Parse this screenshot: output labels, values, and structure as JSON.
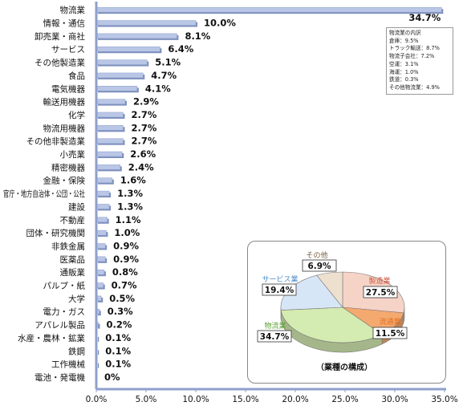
{
  "chart_data": {
    "type": "bar",
    "orientation": "horizontal",
    "categories": [
      "物流業",
      "情報・通信",
      "卸売業・商社",
      "サービス",
      "その他製造業",
      "食品",
      "電気機器",
      "輸送用機器",
      "化学",
      "物流用機器",
      "その他非製造業",
      "小売業",
      "精密機器",
      "金融・保険",
      "官庁・地方自治体・公団・公社",
      "建設",
      "不動産",
      "団体・研究機関",
      "非鉄金属",
      "医薬品",
      "通販業",
      "パルプ・紙",
      "大学",
      "電力・ガス",
      "アパレル製品",
      "水産・農林・鉱業",
      "鉄鋼",
      "工作機械",
      "電池・発電機"
    ],
    "values": [
      34.7,
      10.0,
      8.1,
      6.4,
      5.1,
      4.7,
      4.1,
      2.9,
      2.7,
      2.7,
      2.7,
      2.6,
      2.4,
      1.6,
      1.3,
      1.3,
      1.1,
      1.0,
      0.9,
      0.9,
      0.8,
      0.7,
      0.5,
      0.3,
      0.2,
      0.1,
      0.1,
      0.1,
      0
    ],
    "value_labels": [
      "34.7%",
      "10.0%",
      "8.1%",
      "6.4%",
      "5.1%",
      "4.7%",
      "4.1%",
      "2.9%",
      "2.7%",
      "2.7%",
      "2.7%",
      "2.6%",
      "2.4%",
      "1.6%",
      "1.3%",
      "1.3%",
      "1.1%",
      "1.0%",
      "0.9%",
      "0.9%",
      "0.8%",
      "0.7%",
      "0.5%",
      "0.3%",
      "0.2%",
      "0.1%",
      "0.1%",
      "0.1%",
      "0%"
    ],
    "xlim": [
      0,
      35
    ],
    "x_ticks": [
      "0.0%",
      "5.0%",
      "10.0%",
      "15.0%",
      "20.0%",
      "25.0%",
      "30.0%",
      "35.0%"
    ],
    "grid": false,
    "bar_color": "#b9c6e6",
    "breakdown_note": {
      "title": "物流業の内訳",
      "lines": [
        "倉庫：9.5%",
        "トラック輸送：8.7%",
        "物流子会社：7.2%",
        "空運：3.1%",
        "海運：1.0%",
        "鉄道：0.3%",
        "その他物流業：4.9%"
      ]
    },
    "inset_pie": {
      "type": "pie",
      "title": "（業種の構成）",
      "slices": [
        {
          "label": "製造業",
          "value": 27.5,
          "value_label": "27.5%",
          "color": "#f6d3c7",
          "label_color": "#d0553a"
        },
        {
          "label": "流通業",
          "value": 11.5,
          "value_label": "11.5%",
          "color": "#f4a96f",
          "label_color": "#e07020"
        },
        {
          "label": "物流業",
          "value": 34.7,
          "value_label": "34.7%",
          "color": "#d4ebb1",
          "label_color": "#5aa032"
        },
        {
          "label": "サービス業",
          "value": 19.4,
          "value_label": "19.4%",
          "color": "#d6e6f6",
          "label_color": "#4a8ac8"
        },
        {
          "label": "その他",
          "value": 6.9,
          "value_label": "6.9%",
          "color": "#eee0cf",
          "label_color": "#7a6040"
        }
      ]
    }
  }
}
